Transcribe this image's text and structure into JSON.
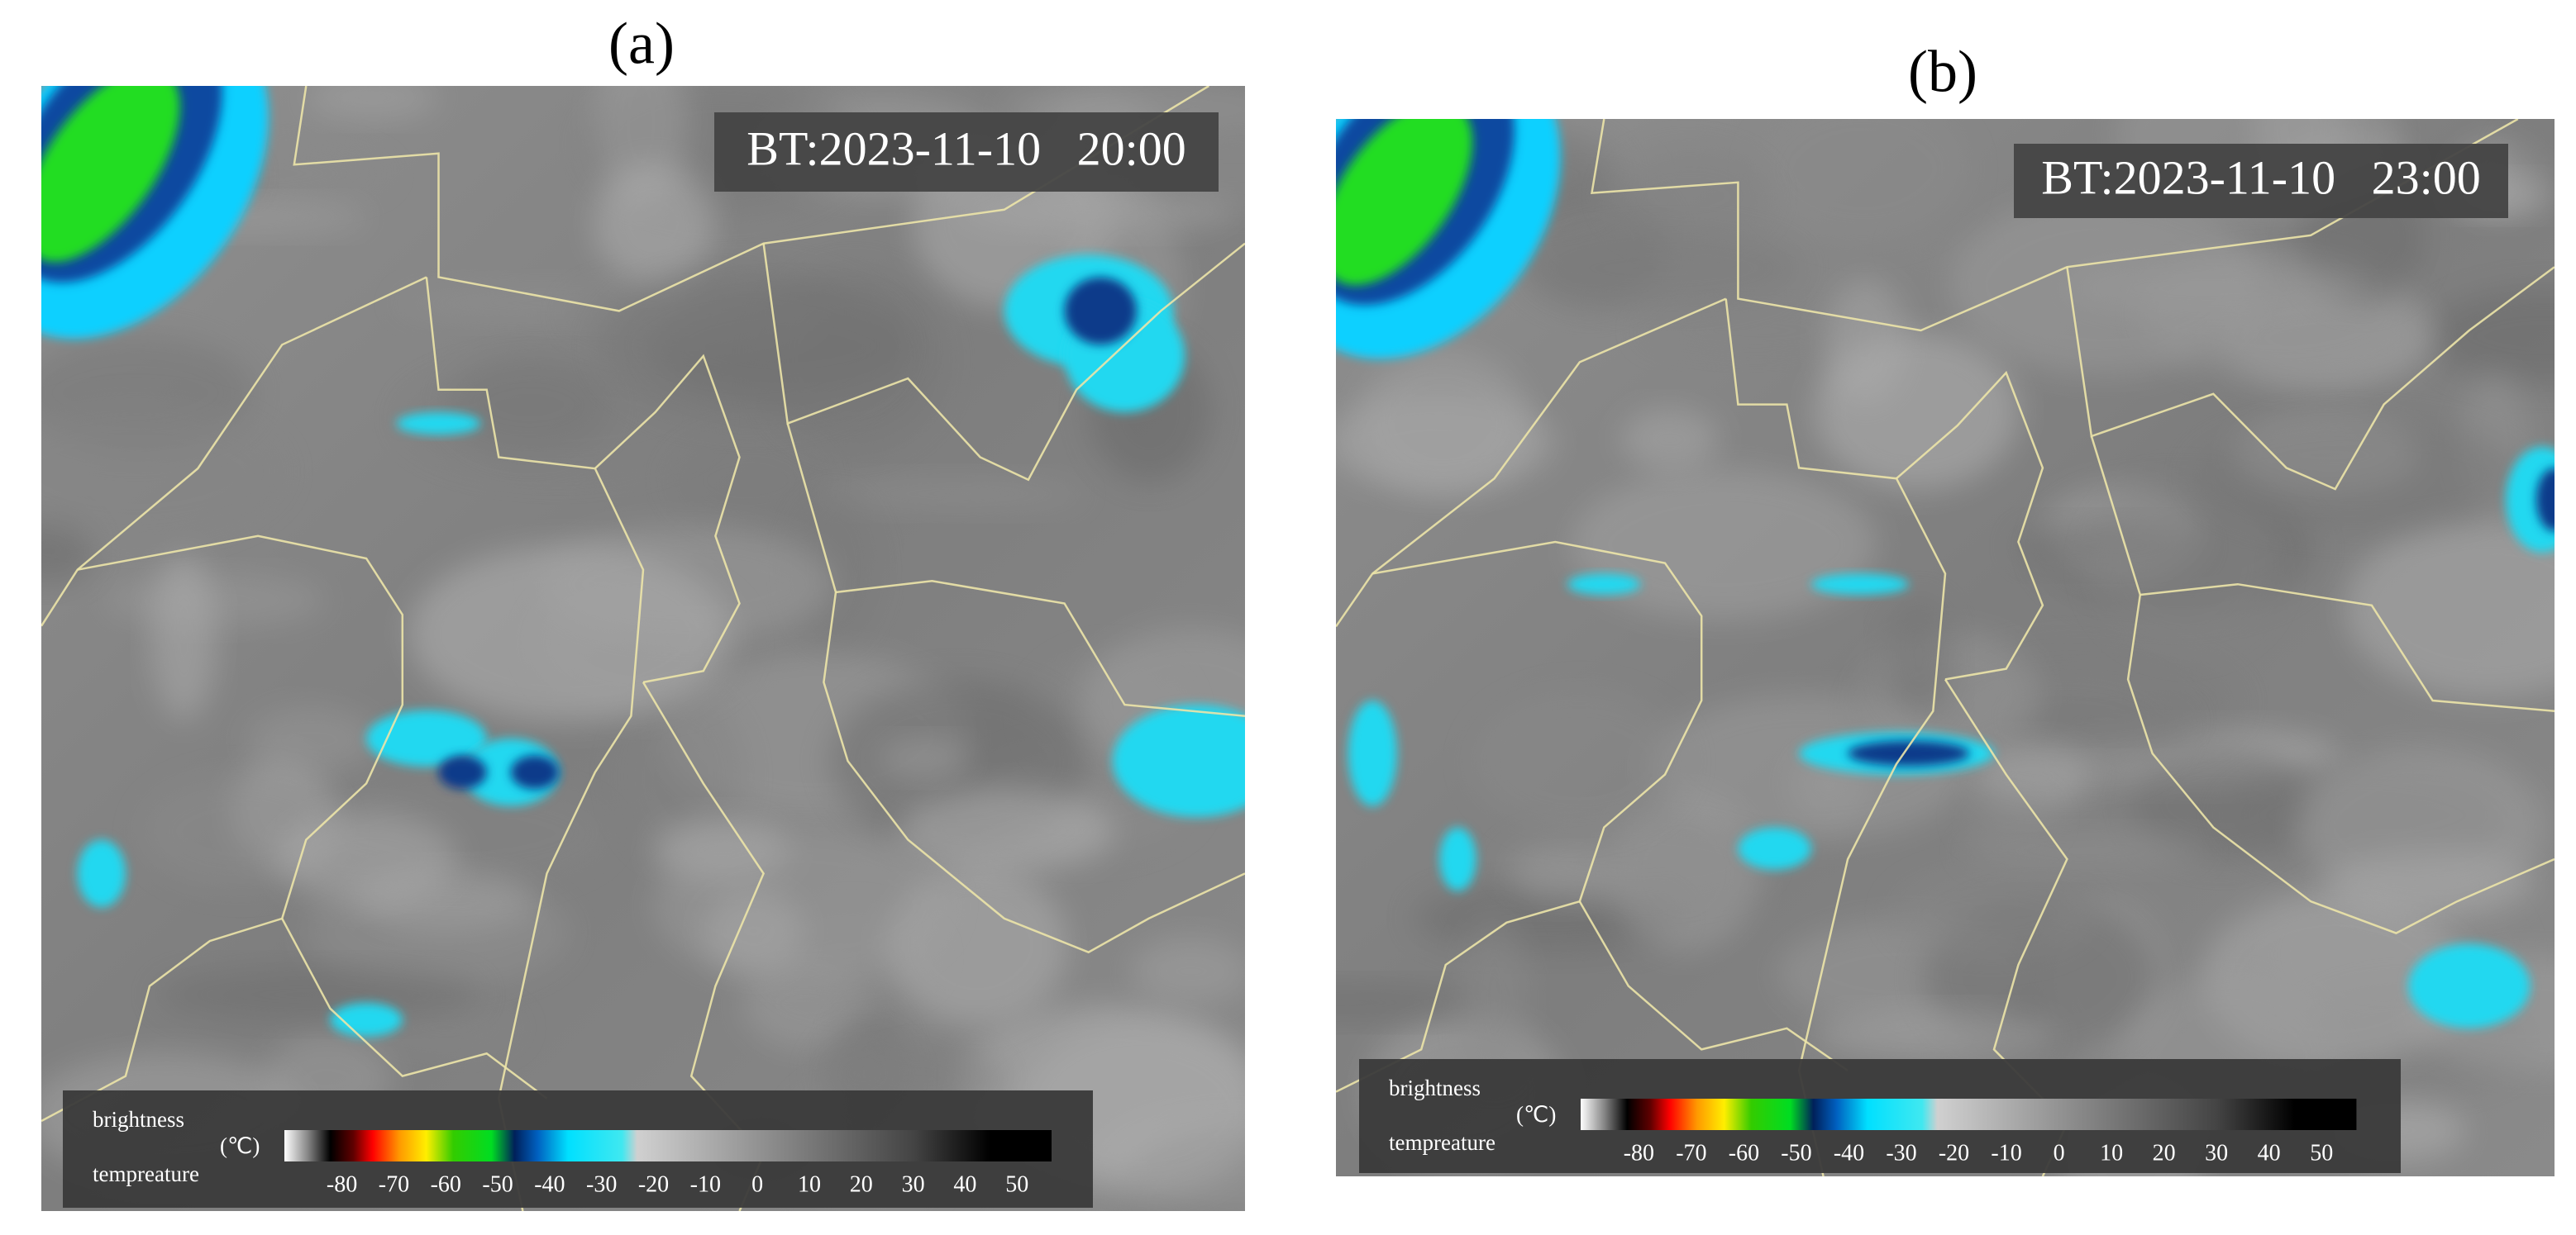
{
  "panels": [
    {
      "label": "(a)",
      "timestamp": "BT:2023-11-10   20:00",
      "legend": {
        "title_lines": [
          "brightness",
          "tempreature"
        ],
        "unit": "(℃)",
        "ticks": [
          -80,
          -70,
          -60,
          -50,
          -40,
          -30,
          -20,
          -10,
          0,
          10,
          20,
          30,
          40,
          50
        ]
      }
    },
    {
      "label": "(b)",
      "timestamp": "BT:2023-11-10   23:00",
      "legend": {
        "title_lines": [
          "brightness",
          "tempreature"
        ],
        "unit": "(℃)",
        "ticks": [
          -80,
          -70,
          -60,
          -50,
          -40,
          -30,
          -20,
          -10,
          0,
          10,
          20,
          30,
          40,
          50
        ]
      }
    }
  ]
}
